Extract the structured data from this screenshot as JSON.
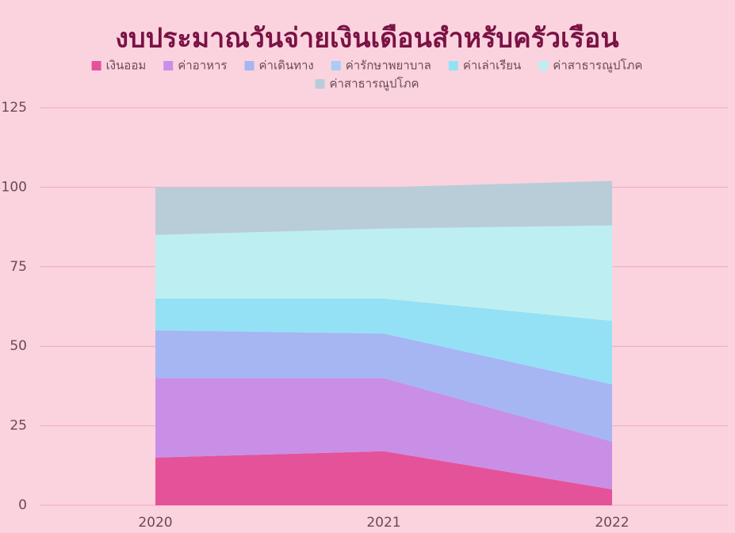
{
  "chart_data": {
    "type": "stacked-area",
    "title": "งบประมาณวันจ่ายเงินเดือนสำหรับครัวเรือน",
    "categories": [
      "2020",
      "2021",
      "2022"
    ],
    "series": [
      {
        "name": "เงินออม",
        "color": "#e4529a",
        "values": [
          15,
          17,
          5
        ]
      },
      {
        "name": "ค่าอาหาร",
        "color": "#c98fe6",
        "values": [
          25,
          23,
          15
        ]
      },
      {
        "name": "ค่าเดินทาง",
        "color": "#a6b6f2",
        "values": [
          15,
          14,
          18
        ]
      },
      {
        "name": "ค่ารักษาพยาบาล",
        "color": "#a9cdf6",
        "values": [
          0,
          0,
          0
        ]
      },
      {
        "name": "ค่าเล่าเรียน",
        "color": "#94e1f5",
        "values": [
          10,
          11,
          20
        ]
      },
      {
        "name": "ค่าสาธารณูปโภค",
        "color": "#bdeff2",
        "values": [
          20,
          22,
          30
        ]
      },
      {
        "name": "ค่าสาธารณูปโภค",
        "color": "#b8cdd8",
        "values": [
          15,
          13,
          14
        ]
      }
    ],
    "ylim": [
      0,
      125
    ],
    "yticks": [
      0,
      25,
      50,
      75,
      100,
      125
    ],
    "grid": true
  }
}
